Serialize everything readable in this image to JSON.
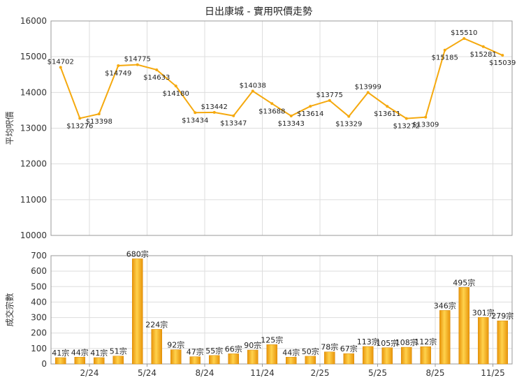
{
  "chart_data": [
    {
      "type": "line",
      "title": "日出康城 - 實用呎價走勢",
      "ylabel": "平均呎價",
      "xlabel": "",
      "ylim": [
        10000,
        16000
      ],
      "yticks": [
        10000,
        11000,
        12000,
        13000,
        14000,
        15000,
        16000
      ],
      "xticks": [
        "2/24",
        "5/24",
        "8/24",
        "11/24",
        "2/25",
        "5/25",
        "8/25",
        "11/25"
      ],
      "grid": true,
      "color": "#F5A90E",
      "series": [
        {
          "values": [
            14702,
            13276,
            13398,
            14749,
            14775,
            14633,
            14180,
            13434,
            13442,
            13347,
            14038,
            13688,
            13343,
            13614,
            13775,
            13329,
            13999,
            13611,
            13272,
            13309,
            15185,
            15510,
            15281,
            15039
          ],
          "labels": [
            "$14702",
            "$13276",
            "$13398",
            "$14749",
            "$14775",
            "$14633",
            "$14180",
            "$13434",
            "$13442",
            "$13347",
            "$14038",
            "$13688",
            "$13343",
            "$13614",
            "$13775",
            "$13329",
            "$13999",
            "$13611",
            "$13272",
            "$13309",
            "$15185",
            "$15510",
            "$15281",
            "$15039"
          ]
        }
      ]
    },
    {
      "type": "bar",
      "title": "",
      "ylabel": "成交宗數",
      "xlabel": "",
      "ylim": [
        0,
        700
      ],
      "yticks": [
        0,
        100,
        200,
        300,
        400,
        500,
        600,
        700
      ],
      "xticks": [
        "2/24",
        "5/24",
        "8/24",
        "11/24",
        "2/25",
        "5/25",
        "8/25",
        "11/25"
      ],
      "grid": true,
      "color": "#F2A91C",
      "series": [
        {
          "values": [
            41,
            44,
            41,
            51,
            680,
            224,
            92,
            47,
            55,
            66,
            90,
            125,
            44,
            50,
            78,
            67,
            113,
            105,
            108,
            112,
            346,
            495,
            301,
            279
          ],
          "labels": [
            "41宗",
            "44宗",
            "41宗",
            "51宗",
            "680宗",
            "224宗",
            "92宗",
            "47宗",
            "55宗",
            "66宗",
            "90宗",
            "125宗",
            "44宗",
            "50宗",
            "78宗",
            "67宗",
            "113宗",
            "105宗",
            "108宗",
            "112宗",
            "346宗",
            "495宗",
            "301宗",
            "279宗"
          ]
        }
      ]
    }
  ]
}
